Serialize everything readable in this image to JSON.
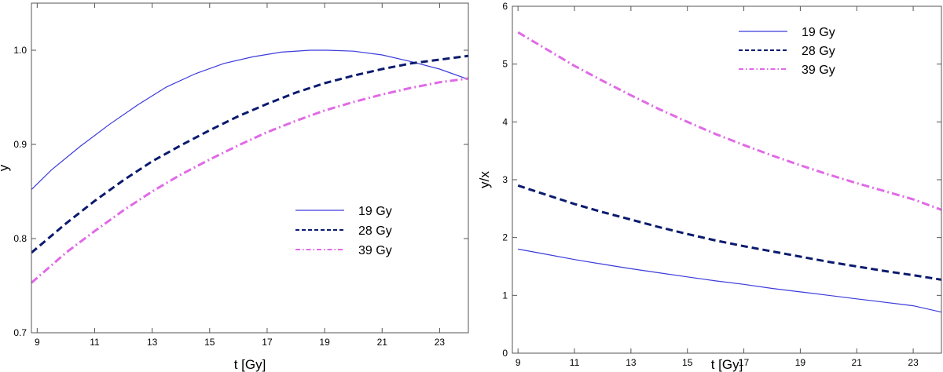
{
  "chart_data": [
    {
      "type": "line",
      "xlabel": "t [Gy]",
      "ylabel": "y",
      "xlim": [
        8.8,
        24.0
      ],
      "ylim": [
        0.7,
        1.05
      ],
      "x_ticks": [
        9,
        11,
        13,
        15,
        17,
        19,
        21,
        23
      ],
      "y_ticks": [
        0.7,
        0.8,
        0.9,
        1.0
      ],
      "y_tick_labels": [
        "0.7",
        "0.8",
        "0.9",
        "1.0"
      ],
      "legend_position": "center-right",
      "series": [
        {
          "name": "19 Gy",
          "color": "#3b3bdb",
          "style": "solid",
          "x": [
            8.8,
            9.5,
            10.5,
            11.5,
            12.5,
            13.5,
            14.5,
            15.5,
            16.5,
            17.5,
            18.5,
            19.1,
            20,
            21,
            22,
            23,
            24
          ],
          "y": [
            0.852,
            0.873,
            0.898,
            0.921,
            0.942,
            0.961,
            0.975,
            0.986,
            0.993,
            0.998,
            1.0,
            1.0,
            0.999,
            0.995,
            0.988,
            0.98,
            0.969
          ]
        },
        {
          "name": "28 Gy",
          "color": "#0a1a6e",
          "style": "dashed",
          "x": [
            8.8,
            10,
            11,
            12,
            13,
            14,
            15,
            16,
            17,
            18,
            19,
            20,
            21,
            22,
            23,
            24
          ],
          "y": [
            0.785,
            0.816,
            0.84,
            0.862,
            0.882,
            0.899,
            0.915,
            0.93,
            0.943,
            0.955,
            0.965,
            0.973,
            0.98,
            0.986,
            0.99,
            0.994
          ]
        },
        {
          "name": "39 Gy",
          "color": "#e06ae6",
          "style": "dashdot",
          "x": [
            8.8,
            10,
            11,
            12,
            13,
            14,
            15,
            16,
            17,
            18,
            19,
            20,
            21,
            22,
            23,
            24
          ],
          "y": [
            0.753,
            0.785,
            0.808,
            0.83,
            0.85,
            0.868,
            0.884,
            0.899,
            0.913,
            0.925,
            0.936,
            0.945,
            0.953,
            0.96,
            0.966,
            0.97
          ]
        }
      ]
    },
    {
      "type": "line",
      "xlabel": "t [Gy]",
      "ylabel": "y/x",
      "xlim": [
        8.8,
        24.0
      ],
      "ylim": [
        0,
        6
      ],
      "x_ticks": [
        9,
        11,
        13,
        15,
        17,
        19,
        21,
        23
      ],
      "y_ticks": [
        0,
        1,
        2,
        3,
        4,
        5,
        6
      ],
      "y_tick_labels": [
        "0",
        "1",
        "2",
        "3",
        "4",
        "5",
        "6"
      ],
      "legend_position": "top-right",
      "series": [
        {
          "name": "19 Gy",
          "color": "#3b3bdb",
          "style": "solid",
          "x": [
            9,
            10,
            11,
            12,
            13,
            14,
            15,
            16,
            17,
            18,
            19,
            20,
            21,
            22,
            23,
            24
          ],
          "y": [
            1.8,
            1.71,
            1.62,
            1.54,
            1.46,
            1.39,
            1.32,
            1.25,
            1.19,
            1.12,
            1.06,
            1.0,
            0.94,
            0.88,
            0.82,
            0.71
          ]
        },
        {
          "name": "28 Gy",
          "color": "#0a1a6e",
          "style": "dashed",
          "x": [
            9,
            10,
            11,
            12,
            13,
            14,
            15,
            16,
            17,
            18,
            19,
            20,
            21,
            22,
            23,
            24
          ],
          "y": [
            2.9,
            2.74,
            2.58,
            2.44,
            2.31,
            2.18,
            2.06,
            1.95,
            1.85,
            1.76,
            1.67,
            1.58,
            1.5,
            1.42,
            1.35,
            1.27
          ]
        },
        {
          "name": "39 Gy",
          "color": "#e06ae6",
          "style": "dashdot",
          "x": [
            9,
            10,
            11,
            12,
            13,
            14,
            15,
            16,
            17,
            18,
            19,
            20,
            21,
            22,
            23,
            24
          ],
          "y": [
            5.55,
            5.26,
            4.97,
            4.71,
            4.46,
            4.22,
            4.0,
            3.79,
            3.6,
            3.42,
            3.25,
            3.09,
            2.94,
            2.8,
            2.66,
            2.48
          ]
        }
      ]
    }
  ]
}
